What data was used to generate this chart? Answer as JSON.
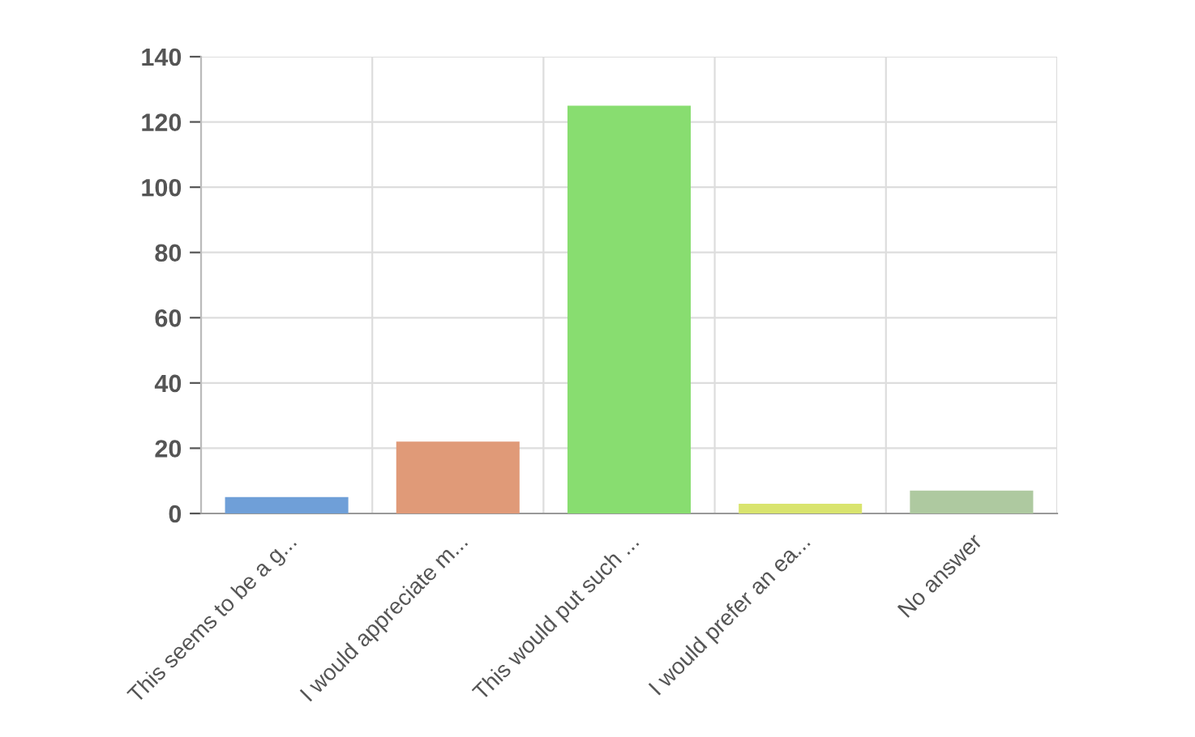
{
  "chart_data": {
    "type": "bar",
    "categories": [
      "This seems to be a g...",
      "I would appreciate m...",
      "This would put such ...",
      "I would prefer an ea...",
      "No answer"
    ],
    "values": [
      5,
      22,
      125,
      3,
      7
    ],
    "colors": [
      "#6f9fd8",
      "#e09a78",
      "#88dd70",
      "#d9e46e",
      "#aec9a0"
    ],
    "ylim": [
      0,
      140
    ],
    "yticks": [
      0,
      20,
      40,
      60,
      80,
      100,
      120,
      140
    ],
    "grid": true
  }
}
